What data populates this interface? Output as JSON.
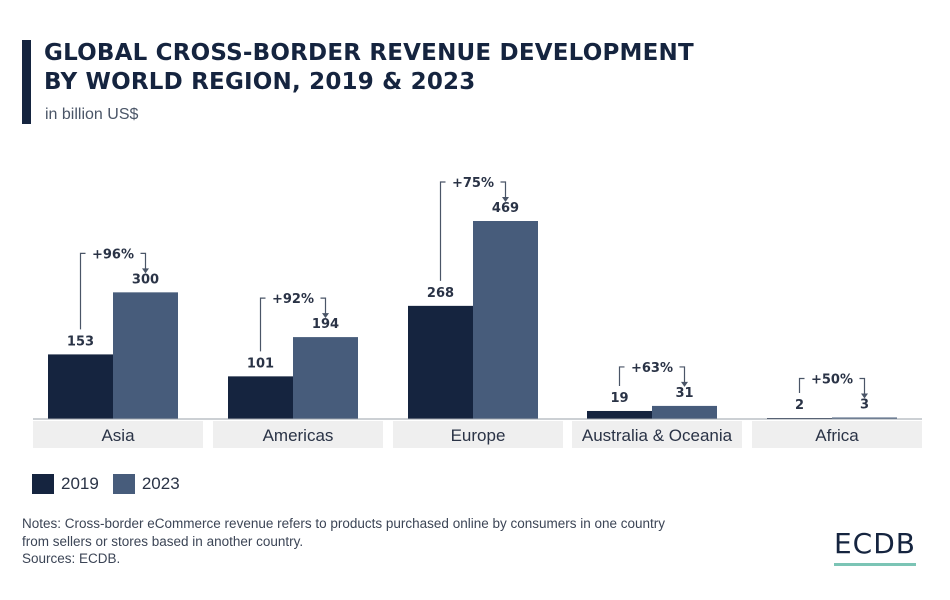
{
  "header": {
    "title": "GLOBAL CROSS-BORDER REVENUE DEVELOPMENT\nBY WORLD REGION, 2019 & 2023",
    "subtitle": "in billion US$"
  },
  "colors": {
    "series_2019": "#15243f",
    "series_2023": "#475c7b",
    "category_band": "#efefef",
    "axis": "#9aa0a8"
  },
  "chart_data": {
    "type": "bar",
    "categories": [
      "Asia",
      "Americas",
      "Europe",
      "Australia & Oceania",
      "Africa"
    ],
    "series": [
      {
        "name": "2019",
        "values": [
          153,
          101,
          268,
          19,
          2
        ]
      },
      {
        "name": "2023",
        "values": [
          300,
          194,
          469,
          31,
          3
        ]
      }
    ],
    "annotations": [
      "+96%",
      "+92%",
      "+75%",
      "+63%",
      "+50%"
    ],
    "ylim": [
      0,
      469
    ],
    "grid": false,
    "legend": "bottom-left"
  },
  "legend": {
    "items": [
      "2019",
      "2023"
    ]
  },
  "notes": [
    "Notes: Cross-border eCommerce revenue refers to products purchased online by consumers in one country",
    "from sellers or stores based in another country.",
    "Sources: ECDB."
  ],
  "logo": {
    "text": "ECDB"
  }
}
